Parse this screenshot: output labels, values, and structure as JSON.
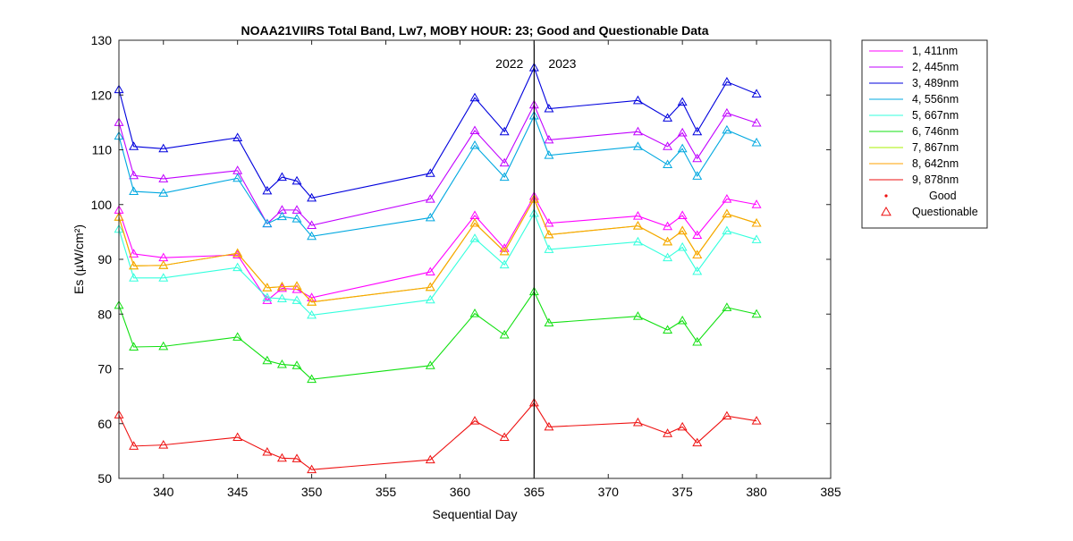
{
  "chart_data": {
    "type": "line",
    "title": "NOAA21VIIRS Total Band,  Lw7, MOBY HOUR: 23;  Good and Questionable Data",
    "xlabel": "Sequential Day",
    "ylabel": "Es (µW/cm²)",
    "xlim": [
      337,
      385
    ],
    "ylim": [
      50,
      130
    ],
    "xticks": [
      340,
      345,
      350,
      355,
      360,
      365,
      370,
      375,
      380,
      385
    ],
    "yticks": [
      50,
      60,
      70,
      80,
      90,
      100,
      110,
      120,
      130
    ],
    "grid": false,
    "legend_position": "outside-right",
    "x": [
      337,
      338,
      340,
      345,
      347,
      348,
      349,
      350,
      358,
      361,
      363,
      365,
      366,
      372,
      374,
      375,
      376,
      378,
      380
    ],
    "series": [
      {
        "name": "1, 411nm",
        "color": "#ff00ff",
        "values": [
          99,
          91,
          90.3,
          90.8,
          82.5,
          84.7,
          84.5,
          83,
          87.7,
          98,
          92,
          101.5,
          96.6,
          97.9,
          96,
          98,
          94.4,
          101,
          100
        ]
      },
      {
        "name": "2, 445nm",
        "color": "#c000ff",
        "values": [
          115,
          105.3,
          104.7,
          106.2,
          96.5,
          99,
          99,
          96.2,
          101,
          113.5,
          107.6,
          118.2,
          111.8,
          113.3,
          110.6,
          113.1,
          108.4,
          116.7,
          114.9
        ]
      },
      {
        "name": "3, 489nm",
        "color": "#0000dd",
        "values": [
          121,
          110.6,
          110.2,
          112.2,
          102.5,
          105,
          104.3,
          101.2,
          105.7,
          119.5,
          113.3,
          125,
          117.5,
          119,
          115.8,
          118.7,
          113.3,
          122.4,
          120.2
        ]
      },
      {
        "name": "4, 556nm",
        "color": "#00a8e0",
        "values": [
          112.5,
          102.4,
          102.1,
          104.8,
          96.5,
          97.8,
          97.4,
          94.2,
          97.6,
          110.8,
          105,
          116.2,
          109,
          110.6,
          107.3,
          110.2,
          105.2,
          113.6,
          111.3
        ]
      },
      {
        "name": "5, 667nm",
        "color": "#33ffdd",
        "values": [
          95.5,
          86.6,
          86.6,
          88.5,
          83,
          82.8,
          82.5,
          79.8,
          82.6,
          93.8,
          89,
          98.4,
          91.8,
          93.2,
          90.3,
          92.2,
          87.8,
          95.2,
          93.6
        ]
      },
      {
        "name": "6, 746nm",
        "color": "#11e011",
        "values": [
          81.6,
          74,
          74.1,
          75.8,
          71.5,
          70.8,
          70.6,
          68.1,
          70.6,
          80.1,
          76.2,
          84.1,
          78.4,
          79.6,
          77.1,
          78.8,
          74.9,
          81.2,
          80
        ]
      },
      {
        "name": "7, 867nm",
        "color": "#a8f000",
        "values": [
          97.7,
          88.8,
          88.9,
          91.1,
          84.8,
          85,
          85.1,
          82.2,
          84.9,
          96.6,
          91.4,
          101,
          94.5,
          96.1,
          93.2,
          95.2,
          90.8,
          98.3,
          96.6
        ]
      },
      {
        "name": "8, 642nm",
        "color": "#ffa000",
        "values": [
          97.7,
          88.8,
          88.9,
          91.1,
          84.8,
          85,
          85.1,
          82.2,
          84.9,
          96.6,
          91.4,
          101,
          94.5,
          96.1,
          93.2,
          95.2,
          90.8,
          98.3,
          96.6
        ]
      },
      {
        "name": "9, 878nm",
        "color": "#ee1111",
        "values": [
          61.6,
          55.9,
          56.1,
          57.5,
          54.8,
          53.7,
          53.6,
          51.6,
          53.4,
          60.5,
          57.5,
          63.8,
          59.4,
          60.2,
          58.2,
          59.4,
          56.5,
          61.4,
          60.5
        ]
      }
    ],
    "divider": {
      "x": 365,
      "left_label": "2022",
      "right_label": "2023"
    },
    "legend_markers": [
      {
        "label": "Good",
        "color": "#ee1111",
        "marker": "dot"
      },
      {
        "label": "Questionable",
        "color": "#ee1111",
        "marker": "triangle"
      }
    ]
  }
}
